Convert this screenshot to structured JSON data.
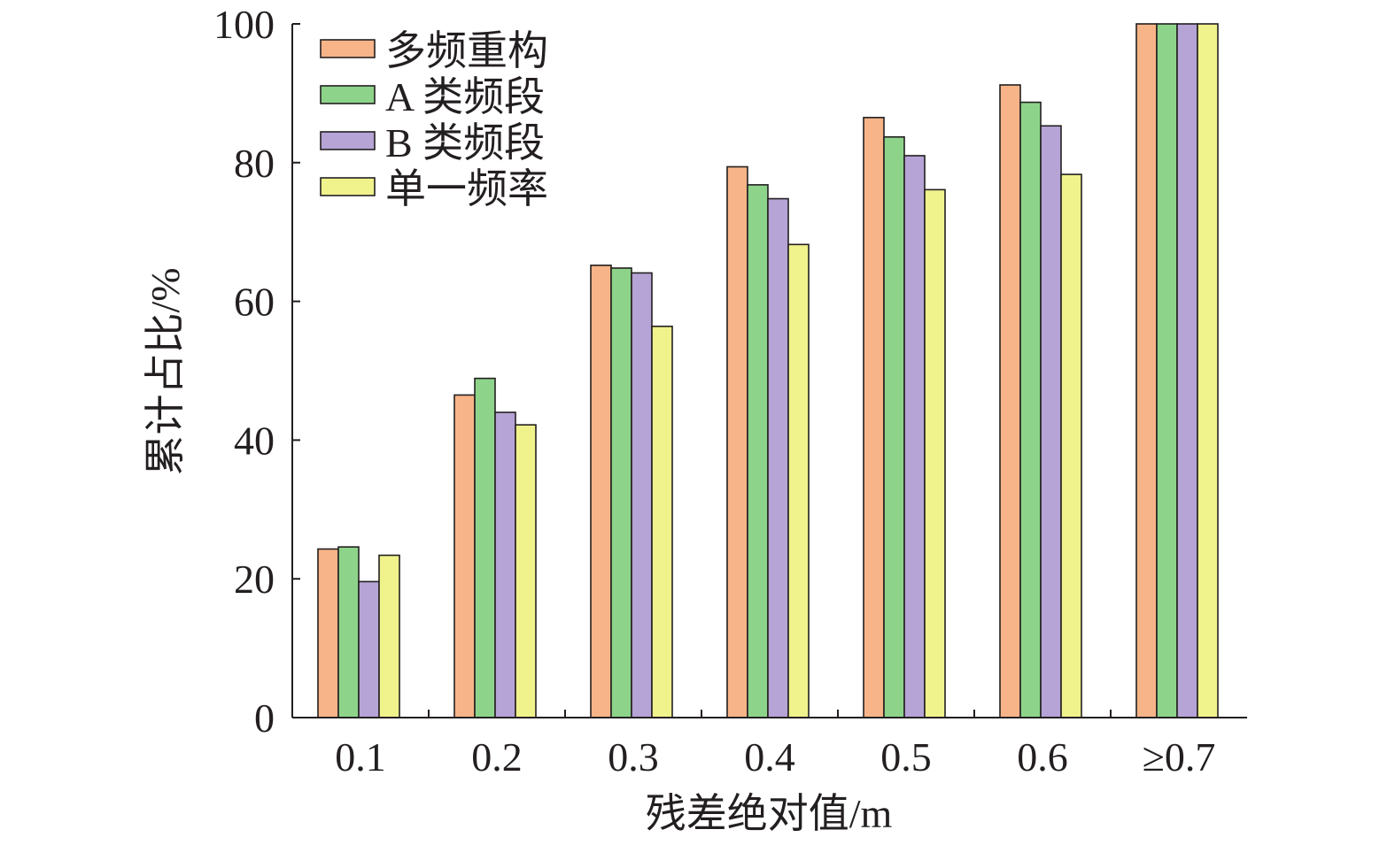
{
  "chart_data": {
    "type": "bar",
    "xlabel": "残差绝对值/m",
    "ylabel": "累计占比/%",
    "ylim": [
      0,
      100
    ],
    "yticks": [
      0,
      20,
      40,
      60,
      80,
      100
    ],
    "categories": [
      "0.1",
      "0.2",
      "0.3",
      "0.4",
      "0.5",
      "0.6",
      "≥0.7"
    ],
    "series": [
      {
        "name": "多频重构",
        "color": "#f7b488",
        "values": [
          24.3,
          46.5,
          65.2,
          79.4,
          86.5,
          91.2,
          100
        ]
      },
      {
        "name": "A 类频段",
        "color": "#8dd48a",
        "values": [
          24.6,
          48.9,
          64.8,
          76.8,
          83.7,
          88.7,
          100
        ]
      },
      {
        "name": "B 类频段",
        "color": "#b6a4d6",
        "values": [
          19.6,
          44.0,
          64.1,
          74.8,
          81.0,
          85.3,
          100
        ]
      },
      {
        "name": "单一频率",
        "color": "#f0f28c",
        "values": [
          23.4,
          42.2,
          56.4,
          68.2,
          76.1,
          78.3,
          100
        ]
      }
    ],
    "legend": "top-left",
    "grid": false
  }
}
